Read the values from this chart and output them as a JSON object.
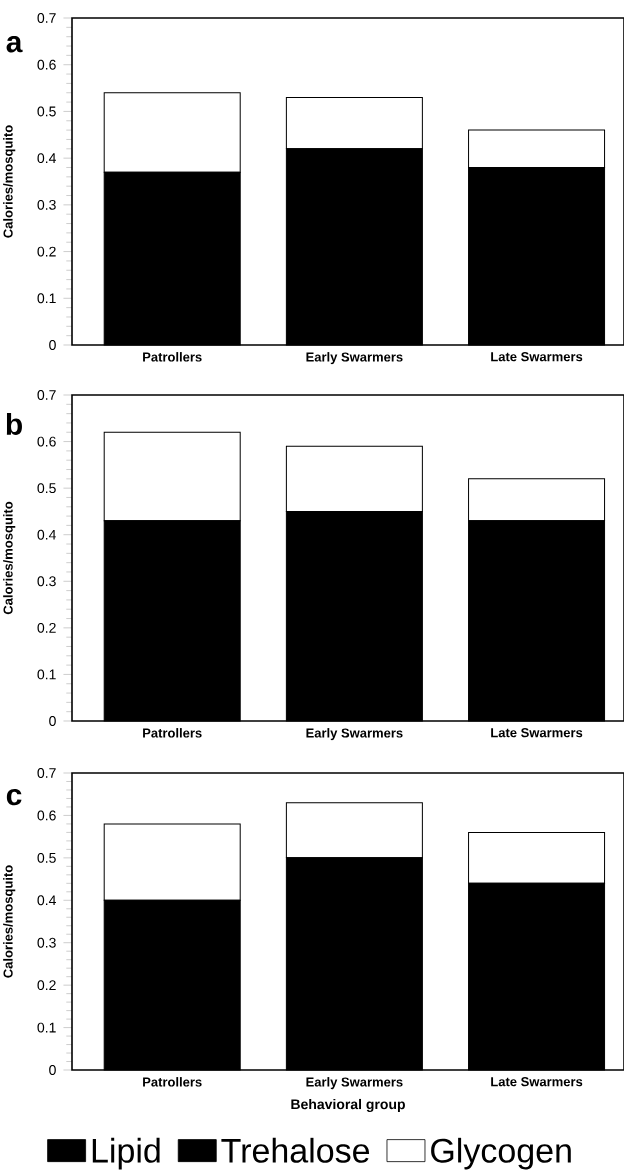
{
  "chart_data": [
    {
      "type": "bar",
      "title": "a",
      "ylabel": "Calories/mosquito",
      "categories": [
        "Patrollers",
        "Early Swarmers",
        "Late Swarmers"
      ],
      "stacked": true,
      "ylim": [
        0,
        0.7
      ],
      "yticks": [
        0,
        0.1,
        0.2,
        0.3,
        0.4,
        0.5,
        0.6,
        0.7
      ],
      "series": [
        {
          "color": "#000000",
          "values": [
            0.37,
            0.42,
            0.38
          ]
        },
        {
          "color": "#000000",
          "values": [
            null,
            null,
            null
          ]
        },
        {
          "color": "#ffffff",
          "values": [
            0.17,
            0.11,
            0.08
          ]
        }
      ]
    },
    {
      "type": "bar",
      "title": "b",
      "ylabel": "Calories/mosquito",
      "categories": [
        "Patrollers",
        "Early Swarmers",
        "Late Swarmers"
      ],
      "stacked": true,
      "ylim": [
        0,
        0.7
      ],
      "yticks": [
        0,
        0.1,
        0.2,
        0.3,
        0.4,
        0.5,
        0.6,
        0.7
      ],
      "series": [
        {
          "color": "#000000",
          "values": [
            0.43,
            0.45,
            0.43
          ]
        },
        {
          "color": "#000000",
          "values": [
            null,
            null,
            null
          ]
        },
        {
          "color": "#ffffff",
          "values": [
            0.19,
            0.14,
            0.09
          ]
        }
      ]
    },
    {
      "type": "bar",
      "title": "c",
      "ylabel": "Calories/mosquito",
      "xlabel": "Behavioral group",
      "categories": [
        "Patrollers",
        "Early Swarmers",
        "Late Swarmers"
      ],
      "stacked": true,
      "ylim": [
        0,
        0.7
      ],
      "yticks": [
        0,
        0.1,
        0.2,
        0.3,
        0.4,
        0.5,
        0.6,
        0.7
      ],
      "legend": "bottom",
      "series": [
        {
          "name": "Lipid",
          "color": "#000000",
          "values": [
            0.4,
            0.5,
            0.44
          ]
        },
        {
          "name": "Trehalose",
          "color": "#000000",
          "values": [
            null,
            null,
            null
          ]
        },
        {
          "name": "Glycogen",
          "color": "#ffffff",
          "values": [
            0.18,
            0.13,
            0.12
          ]
        }
      ]
    }
  ]
}
